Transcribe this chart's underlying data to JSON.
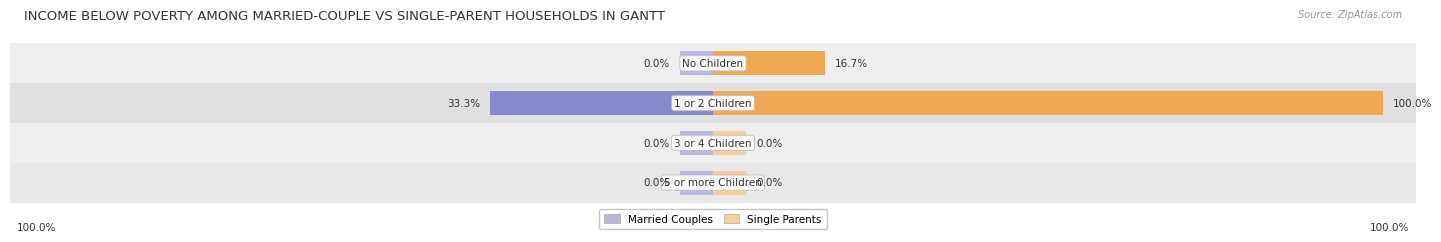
{
  "title": "INCOME BELOW POVERTY AMONG MARRIED-COUPLE VS SINGLE-PARENT HOUSEHOLDS IN GANTT",
  "source": "Source: ZipAtlas.com",
  "categories": [
    "No Children",
    "1 or 2 Children",
    "3 or 4 Children",
    "5 or more Children"
  ],
  "married_values": [
    0.0,
    33.3,
    0.0,
    0.0
  ],
  "single_values": [
    16.7,
    100.0,
    0.0,
    0.0
  ],
  "married_color": "#8888cc",
  "single_color": "#f0a855",
  "married_stub_color": "#b8b8e0",
  "single_stub_color": "#f5cfa0",
  "row_colors": [
    "#eeeeee",
    "#e0e0e0",
    "#eeeeee",
    "#e8e8e8"
  ],
  "title_fontsize": 9.5,
  "label_fontsize": 7.5,
  "value_fontsize": 7.5,
  "source_fontsize": 7,
  "axis_max": 100.0,
  "stub_size": 5.0,
  "legend_married": "Married Couples",
  "legend_single": "Single Parents",
  "bottom_left_label": "100.0%",
  "bottom_right_label": "100.0%"
}
